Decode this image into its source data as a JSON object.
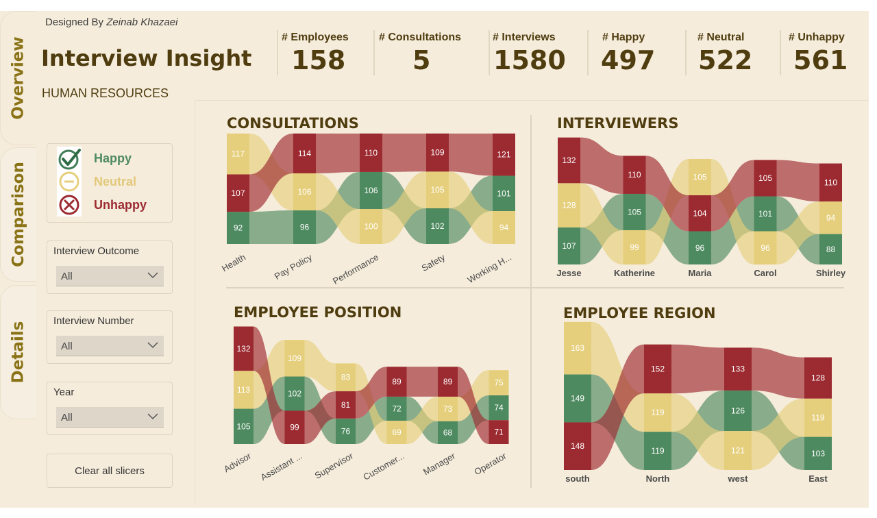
{
  "tabs": [
    "Overview",
    "Comparison",
    "Details"
  ],
  "designed_prefix": "Designed By",
  "designed_name": "Zeinab Khazaei",
  "title": "Interview Insight",
  "subtitle": "HUMAN RESOURCES",
  "kpis": [
    {
      "label": "# Employees",
      "value": "158"
    },
    {
      "label": "# Consultations",
      "value": "5"
    },
    {
      "label": "# Interviews",
      "value": "1580"
    },
    {
      "label": "# Happy",
      "value": "497"
    },
    {
      "label": "# Neutral",
      "value": "522"
    },
    {
      "label": "# Unhappy",
      "value": "561"
    }
  ],
  "legend": {
    "happy": "Happy",
    "neutral": "Neutral",
    "unhappy": "Unhappy"
  },
  "colors": {
    "happy": "#4e8a60",
    "neutral": "#e6cf7c",
    "unhappy": "#9c2a31",
    "title": "#4f3d10"
  },
  "slicers": [
    {
      "label": "Interview Outcome",
      "value": "All"
    },
    {
      "label": "Interview Number",
      "value": "All"
    },
    {
      "label": "Year",
      "value": "All"
    }
  ],
  "clear_label": "Clear all slicers",
  "chart_data": [
    {
      "type": "ribbon",
      "title": "CONSULTATIONS",
      "categories": [
        "Health",
        "Pay Policy",
        "Performance",
        "Safety",
        "Working H..."
      ],
      "series": [
        {
          "name": "Happy",
          "values": [
            92,
            96,
            106,
            102,
            101
          ]
        },
        {
          "name": "Neutral",
          "values": [
            117,
            106,
            100,
            105,
            94
          ]
        },
        {
          "name": "Unhappy",
          "values": [
            107,
            114,
            110,
            109,
            121
          ]
        }
      ]
    },
    {
      "type": "ribbon",
      "title": "INTERVIEWERS",
      "categories": [
        "Jesse",
        "Katherine",
        "Maria",
        "Carol",
        "Shirley"
      ],
      "series": [
        {
          "name": "Happy",
          "values": [
            107,
            105,
            96,
            101,
            88
          ]
        },
        {
          "name": "Neutral",
          "values": [
            128,
            99,
            105,
            96,
            94
          ]
        },
        {
          "name": "Unhappy",
          "values": [
            132,
            110,
            104,
            105,
            110
          ]
        }
      ]
    },
    {
      "type": "ribbon",
      "title": "EMPLOYEE POSITION",
      "categories": [
        "Advisor",
        "Assistant ...",
        "Supervisor",
        "Customer...",
        "Manager",
        "Operator"
      ],
      "series": [
        {
          "name": "Happy",
          "values": [
            105,
            102,
            76,
            72,
            68,
            74
          ]
        },
        {
          "name": "Neutral",
          "values": [
            113,
            109,
            83,
            69,
            73,
            75
          ]
        },
        {
          "name": "Unhappy",
          "values": [
            132,
            99,
            81,
            89,
            89,
            71
          ]
        }
      ]
    },
    {
      "type": "ribbon",
      "title": "EMPLOYEE REGION",
      "categories": [
        "south",
        "North",
        "west",
        "East"
      ],
      "series": [
        {
          "name": "Happy",
          "values": [
            149,
            119,
            126,
            103
          ]
        },
        {
          "name": "Neutral",
          "values": [
            163,
            119,
            121,
            119
          ]
        },
        {
          "name": "Unhappy",
          "values": [
            148,
            152,
            133,
            128
          ]
        }
      ]
    }
  ]
}
